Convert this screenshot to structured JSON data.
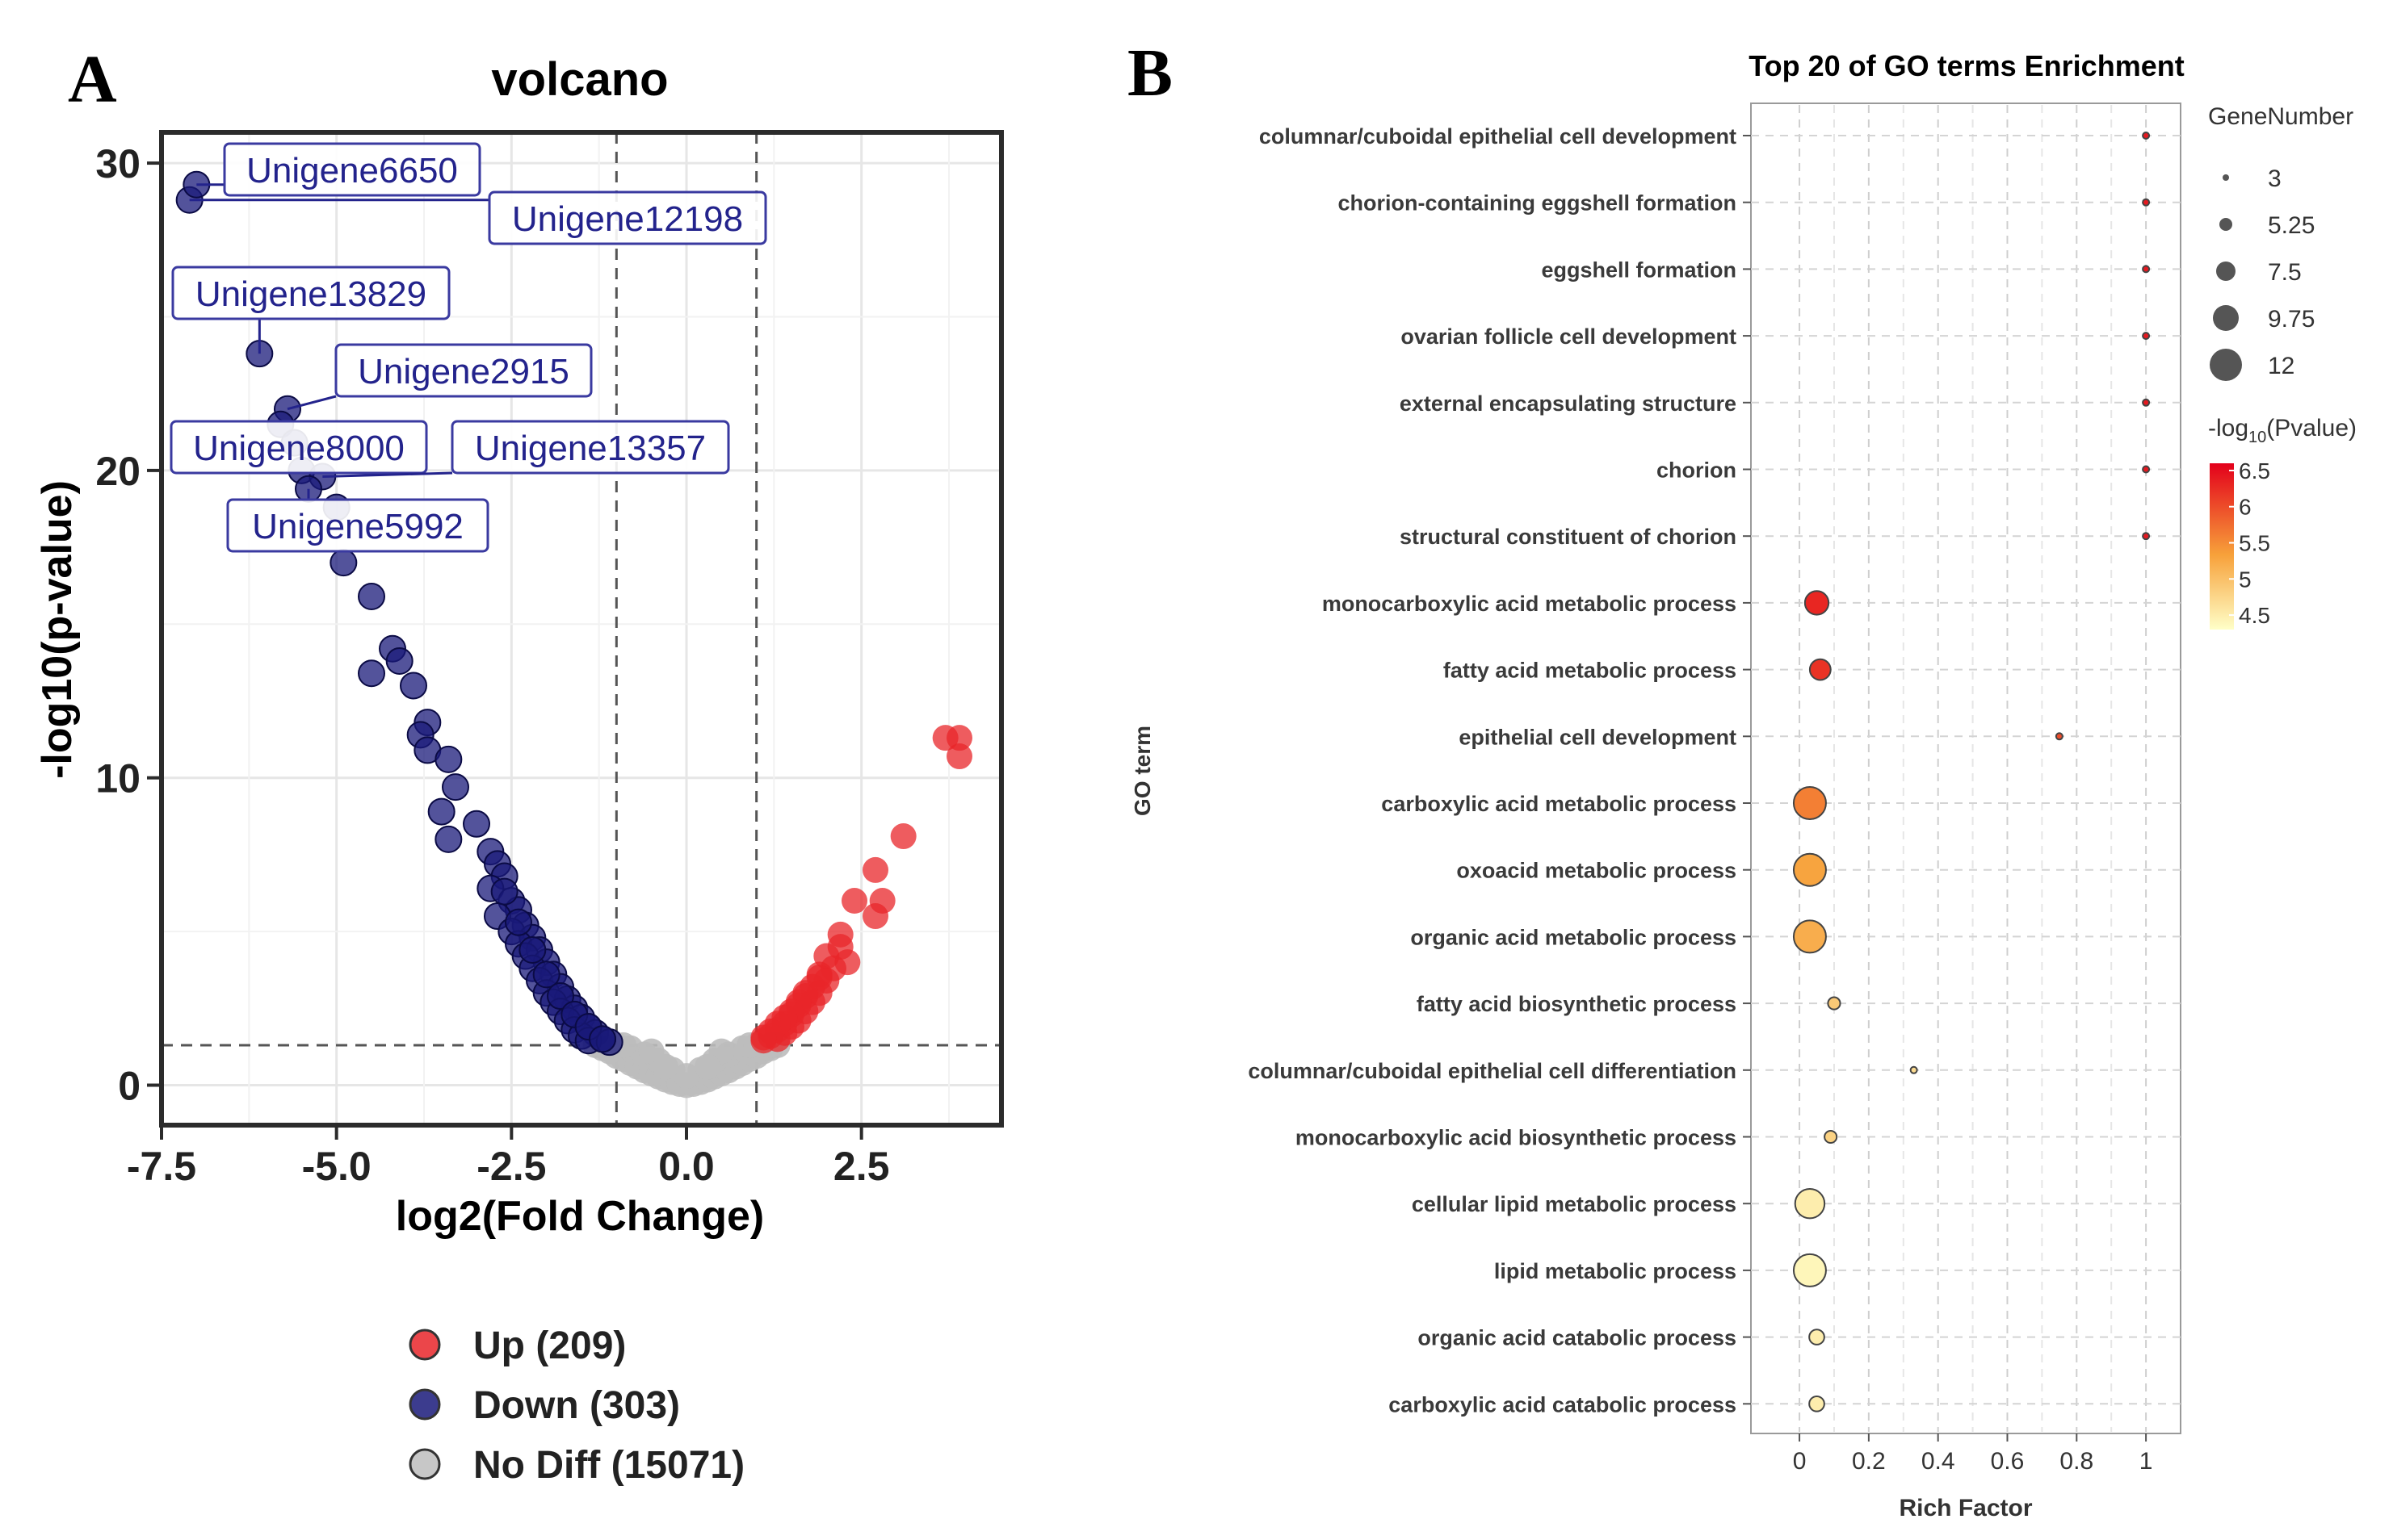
{
  "panels": {
    "a_letter": "A",
    "b_letter": "B"
  },
  "colors": {
    "up": "#e8262a",
    "down": "#1a1a7a",
    "nodiff": "#bdbdbd",
    "label_border": "#3a3aa0",
    "label_text": "#23238c",
    "grid": "#e6e6e6",
    "pval_low": "#ffffc8",
    "pval_mid": "#f7a13a",
    "pval_high": "#e3001b"
  },
  "chart_data": [
    {
      "type": "scatter",
      "title": "volcano",
      "xlabel": "log2(Fold Change)",
      "ylabel": "-log10(p-value)",
      "xlim": [
        -7.5,
        4.5
      ],
      "ylim": [
        -1.3,
        31
      ],
      "xticks": [
        -7.5,
        -5.0,
        -2.5,
        0.0,
        2.5
      ],
      "xtick_labels": [
        "-7.5",
        "-5.0",
        "-2.5",
        "0.0",
        "2.5"
      ],
      "yticks": [
        0,
        10,
        20,
        30
      ],
      "ytick_labels": [
        "0",
        "10",
        "20",
        "30"
      ],
      "thresholds": {
        "fc_low": -1,
        "fc_high": 1,
        "pvalue": 1.3
      },
      "legend": [
        {
          "key": "up",
          "label": "Up (209)"
        },
        {
          "key": "down",
          "label": "Down (303)"
        },
        {
          "key": "nodiff",
          "label": "No Diff (15071)"
        }
      ],
      "series": [
        {
          "name": "Down",
          "color_key": "down",
          "points": [
            [
              -7.1,
              28.8
            ],
            [
              -7.0,
              29.3
            ],
            [
              -6.1,
              23.8
            ],
            [
              -5.7,
              22.0
            ],
            [
              -5.8,
              21.5
            ],
            [
              -5.6,
              20.9
            ],
            [
              -5.5,
              20.0
            ],
            [
              -5.2,
              19.8
            ],
            [
              -5.4,
              19.4
            ],
            [
              -5.0,
              18.8
            ],
            [
              -4.9,
              17.0
            ],
            [
              -4.5,
              15.9
            ],
            [
              -4.2,
              14.2
            ],
            [
              -4.1,
              13.8
            ],
            [
              -4.5,
              13.4
            ],
            [
              -3.9,
              13.0
            ],
            [
              -3.7,
              11.8
            ],
            [
              -3.8,
              11.4
            ],
            [
              -3.7,
              10.9
            ],
            [
              -3.4,
              10.6
            ],
            [
              -3.3,
              9.7
            ],
            [
              -3.5,
              8.9
            ],
            [
              -3.0,
              8.5
            ],
            [
              -3.4,
              8.0
            ],
            [
              -2.8,
              7.6
            ],
            [
              -2.7,
              7.2
            ],
            [
              -2.6,
              6.8
            ],
            [
              -2.8,
              6.4
            ],
            [
              -2.5,
              6.0
            ],
            [
              -2.4,
              5.7
            ],
            [
              -2.7,
              5.5
            ],
            [
              -2.3,
              5.2
            ],
            [
              -2.5,
              5.0
            ],
            [
              -2.2,
              4.8
            ],
            [
              -2.4,
              4.6
            ],
            [
              -2.1,
              4.4
            ],
            [
              -2.3,
              4.2
            ],
            [
              -2.0,
              4.0
            ],
            [
              -2.2,
              3.8
            ],
            [
              -1.9,
              3.6
            ],
            [
              -2.1,
              3.4
            ],
            [
              -1.8,
              3.2
            ],
            [
              -2.0,
              3.0
            ],
            [
              -1.7,
              2.8
            ],
            [
              -1.9,
              2.7
            ],
            [
              -1.6,
              2.5
            ],
            [
              -1.8,
              2.4
            ],
            [
              -1.5,
              2.2
            ],
            [
              -1.7,
              2.1
            ],
            [
              -1.4,
              1.9
            ],
            [
              -1.6,
              1.8
            ],
            [
              -1.3,
              1.7
            ],
            [
              -1.5,
              1.6
            ],
            [
              -1.2,
              1.5
            ],
            [
              -1.4,
              1.45
            ],
            [
              -1.1,
              1.4
            ],
            [
              -2.6,
              6.3
            ],
            [
              -2.4,
              5.3
            ],
            [
              -2.2,
              4.4
            ],
            [
              -2.0,
              3.6
            ],
            [
              -1.8,
              2.9
            ],
            [
              -1.6,
              2.3
            ],
            [
              -1.4,
              1.9
            ],
            [
              -1.2,
              1.5
            ]
          ]
        },
        {
          "name": "Up",
          "color_key": "up",
          "points": [
            [
              3.7,
              11.3
            ],
            [
              3.9,
              11.3
            ],
            [
              3.9,
              10.7
            ],
            [
              3.1,
              8.1
            ],
            [
              2.7,
              7.0
            ],
            [
              2.4,
              6.0
            ],
            [
              2.8,
              6.0
            ],
            [
              2.7,
              5.5
            ],
            [
              2.2,
              4.9
            ],
            [
              2.2,
              4.5
            ],
            [
              2.3,
              4.0
            ],
            [
              2.0,
              4.2
            ],
            [
              2.1,
              3.8
            ],
            [
              1.9,
              3.6
            ],
            [
              2.0,
              3.4
            ],
            [
              1.8,
              3.2
            ],
            [
              1.9,
              3.0
            ],
            [
              1.7,
              2.9
            ],
            [
              1.8,
              2.7
            ],
            [
              1.6,
              2.6
            ],
            [
              1.7,
              2.4
            ],
            [
              1.5,
              2.3
            ],
            [
              1.6,
              2.1
            ],
            [
              1.4,
              2.0
            ],
            [
              1.5,
              1.9
            ],
            [
              1.3,
              1.8
            ],
            [
              1.4,
              1.7
            ],
            [
              1.2,
              1.6
            ],
            [
              1.3,
              1.5
            ],
            [
              1.1,
              1.45
            ],
            [
              1.9,
              3.5
            ],
            [
              1.7,
              3.0
            ],
            [
              1.6,
              2.7
            ],
            [
              1.5,
              2.4
            ],
            [
              1.4,
              2.2
            ],
            [
              1.3,
              2.0
            ],
            [
              1.2,
              1.75
            ],
            [
              1.1,
              1.55
            ]
          ]
        },
        {
          "name": "No Diff",
          "color_key": "nodiff",
          "points": [
            [
              -1.3,
              1.3
            ],
            [
              -1.2,
              1.2
            ],
            [
              -1.1,
              1.1
            ],
            [
              -1.0,
              0.95
            ],
            [
              -0.9,
              0.85
            ],
            [
              -0.8,
              0.72
            ],
            [
              -0.7,
              0.6
            ],
            [
              -0.6,
              0.48
            ],
            [
              -0.5,
              0.38
            ],
            [
              -0.4,
              0.28
            ],
            [
              -0.3,
              0.18
            ],
            [
              -0.2,
              0.1
            ],
            [
              -0.1,
              0.04
            ],
            [
              0.0,
              0.0
            ],
            [
              0.1,
              0.04
            ],
            [
              0.2,
              0.1
            ],
            [
              0.3,
              0.18
            ],
            [
              0.4,
              0.28
            ],
            [
              0.5,
              0.38
            ],
            [
              0.6,
              0.48
            ],
            [
              0.7,
              0.6
            ],
            [
              0.8,
              0.72
            ],
            [
              0.9,
              0.85
            ],
            [
              1.0,
              0.95
            ],
            [
              1.1,
              1.1
            ],
            [
              1.2,
              1.2
            ],
            [
              1.3,
              1.3
            ],
            [
              -1.2,
              1.3
            ],
            [
              -1.0,
              1.3
            ],
            [
              -0.8,
              1.2
            ],
            [
              -0.6,
              1.0
            ],
            [
              -0.4,
              0.8
            ],
            [
              -0.2,
              0.5
            ],
            [
              0.2,
              0.5
            ],
            [
              0.4,
              0.8
            ],
            [
              0.6,
              1.0
            ],
            [
              0.8,
              1.2
            ],
            [
              1.0,
              1.3
            ],
            [
              1.2,
              1.3
            ],
            [
              -0.9,
              1.3
            ],
            [
              0.9,
              1.3
            ],
            [
              -0.5,
              1.1
            ],
            [
              0.5,
              1.1
            ],
            [
              0.0,
              0.3
            ],
            [
              -0.3,
              0.6
            ],
            [
              0.3,
              0.6
            ]
          ]
        }
      ],
      "labels": [
        {
          "text": "Unigene6650",
          "point": [
            -7.0,
            29.3
          ]
        },
        {
          "text": "Unigene12198",
          "point": [
            -7.1,
            28.8
          ]
        },
        {
          "text": "Unigene13829",
          "point": [
            -6.1,
            23.8
          ]
        },
        {
          "text": "Unigene2915",
          "point": [
            -5.7,
            22.0
          ]
        },
        {
          "text": "Unigene8000",
          "point": [
            -5.5,
            20.0
          ]
        },
        {
          "text": "Unigene13357",
          "point": [
            -5.2,
            19.8
          ]
        },
        {
          "text": "Unigene5992",
          "point": [
            -5.4,
            19.4
          ]
        }
      ]
    },
    {
      "type": "scatter",
      "title": "Top 20 of GO terms Enrichment",
      "xlabel": "Rich Factor",
      "ylabel": "GO term",
      "xlim": [
        -0.14,
        1.1
      ],
      "xticks": [
        0,
        0.2,
        0.4,
        0.6,
        0.8,
        1
      ],
      "xtick_labels": [
        "0",
        "0.2",
        "0.4",
        "0.6",
        "0.8",
        "1"
      ],
      "size_legend_title": "GeneNumber",
      "size_legend": [
        3,
        5.25,
        7.5,
        9.75,
        12
      ],
      "size_legend_labels": [
        "3",
        "5.25",
        "7.5",
        "9.75",
        "12"
      ],
      "color_legend_title": "-log10(Pvalue)",
      "color_legend_title_parts": {
        "prefix": "-log",
        "sub": "10",
        "suffix": "(Pvalue)"
      },
      "color_range": [
        4.3,
        6.6
      ],
      "color_ticks": [
        6.5,
        6,
        5.5,
        5,
        4.5
      ],
      "color_tick_labels": [
        "6.5",
        "6",
        "5.5",
        "5",
        "4.5"
      ],
      "terms": [
        {
          "term": "columnar/cuboidal epithelial cell development",
          "rich": 1.0,
          "genes": 3,
          "pval": 6.4
        },
        {
          "term": "chorion-containing eggshell formation",
          "rich": 1.0,
          "genes": 3,
          "pval": 6.4
        },
        {
          "term": "eggshell formation",
          "rich": 1.0,
          "genes": 3,
          "pval": 6.4
        },
        {
          "term": "ovarian follicle cell development",
          "rich": 1.0,
          "genes": 3,
          "pval": 6.4
        },
        {
          "term": "external encapsulating structure",
          "rich": 1.0,
          "genes": 3,
          "pval": 6.4
        },
        {
          "term": "chorion",
          "rich": 1.0,
          "genes": 3,
          "pval": 6.4
        },
        {
          "term": "structural constituent of chorion",
          "rich": 1.0,
          "genes": 3,
          "pval": 6.4
        },
        {
          "term": "monocarboxylic acid metabolic process",
          "rich": 0.05,
          "genes": 9,
          "pval": 6.3
        },
        {
          "term": "fatty acid metabolic process",
          "rich": 0.06,
          "genes": 8,
          "pval": 6.2
        },
        {
          "term": "epithelial cell development",
          "rich": 0.75,
          "genes": 3,
          "pval": 6.0
        },
        {
          "term": "carboxylic acid metabolic process",
          "rich": 0.03,
          "genes": 12,
          "pval": 5.6
        },
        {
          "term": "oxoacid metabolic process",
          "rich": 0.03,
          "genes": 12,
          "pval": 5.3
        },
        {
          "term": "organic acid metabolic process",
          "rich": 0.03,
          "genes": 12,
          "pval": 5.2
        },
        {
          "term": "fatty acid biosynthetic process",
          "rich": 0.1,
          "genes": 5,
          "pval": 4.9
        },
        {
          "term": "columnar/cuboidal epithelial cell differentiation",
          "rich": 0.33,
          "genes": 3,
          "pval": 4.7
        },
        {
          "term": "monocarboxylic acid biosynthetic process",
          "rich": 0.09,
          "genes": 5,
          "pval": 4.8
        },
        {
          "term": "cellular lipid metabolic process",
          "rich": 0.03,
          "genes": 11,
          "pval": 4.5
        },
        {
          "term": "lipid metabolic process",
          "rich": 0.03,
          "genes": 12,
          "pval": 4.4
        },
        {
          "term": "organic acid catabolic process",
          "rich": 0.05,
          "genes": 6,
          "pval": 4.5
        },
        {
          "term": "carboxylic acid catabolic process",
          "rich": 0.05,
          "genes": 6,
          "pval": 4.5
        }
      ]
    }
  ]
}
